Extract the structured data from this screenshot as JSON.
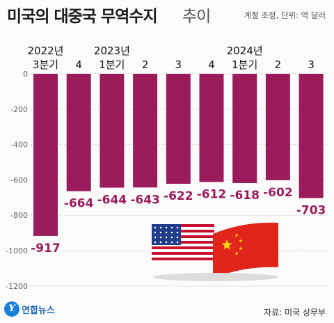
{
  "header": {
    "title": "미국의 대중국 무역수지",
    "title_suffix": "추이",
    "note": "계절 조정, 단위: 억 달러"
  },
  "footer": {
    "source": "자료: 미국 상무부",
    "logo_text": "연합뉴스",
    "logo_mark": "Y"
  },
  "colors": {
    "bar": "#9b1c5d",
    "value_label": "#9b1c5d",
    "axis_text": "#666666",
    "grid": "#cfcfcf"
  },
  "illustration": [
    "us-flag-icon",
    "china-flag-icon"
  ],
  "chart_data": {
    "type": "bar",
    "categories": [
      [
        "2022년",
        "3분기"
      ],
      [
        "",
        "4"
      ],
      [
        "2023년",
        "1분기"
      ],
      [
        "",
        "2"
      ],
      [
        "",
        "3"
      ],
      [
        "",
        "4"
      ],
      [
        "2024년",
        "1분기"
      ],
      [
        "",
        "2"
      ],
      [
        "",
        "3"
      ]
    ],
    "values": [
      -917,
      -664,
      -644,
      -643,
      -622,
      -612,
      -618,
      -602,
      -703
    ],
    "value_labels": [
      "-917",
      "-664",
      "-644",
      "-643",
      "-622",
      "-612",
      "-618",
      "-602",
      "-703"
    ],
    "yticks": [
      "0",
      "-200",
      "-400",
      "-600",
      "-800",
      "-1000",
      "-1200"
    ],
    "ylim": [
      -1200,
      0
    ],
    "grid": true,
    "title": "미국의 대중국 무역수지 추이",
    "xlabel": "",
    "ylabel": ""
  }
}
